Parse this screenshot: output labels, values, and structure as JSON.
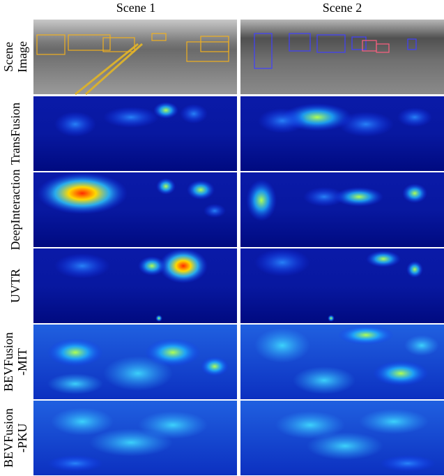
{
  "columns": [
    "Scene 1",
    "Scene 2"
  ],
  "rows": [
    {
      "label": [
        "Scene",
        "Image"
      ]
    },
    {
      "label": [
        "TransFusion"
      ]
    },
    {
      "label": [
        "DeepInteraction"
      ]
    },
    {
      "label": [
        "UVTR"
      ]
    },
    {
      "label": [
        "BEVFusion",
        "-MIT"
      ]
    },
    {
      "label": [
        "BEVFusion",
        "-PKU"
      ]
    }
  ]
}
